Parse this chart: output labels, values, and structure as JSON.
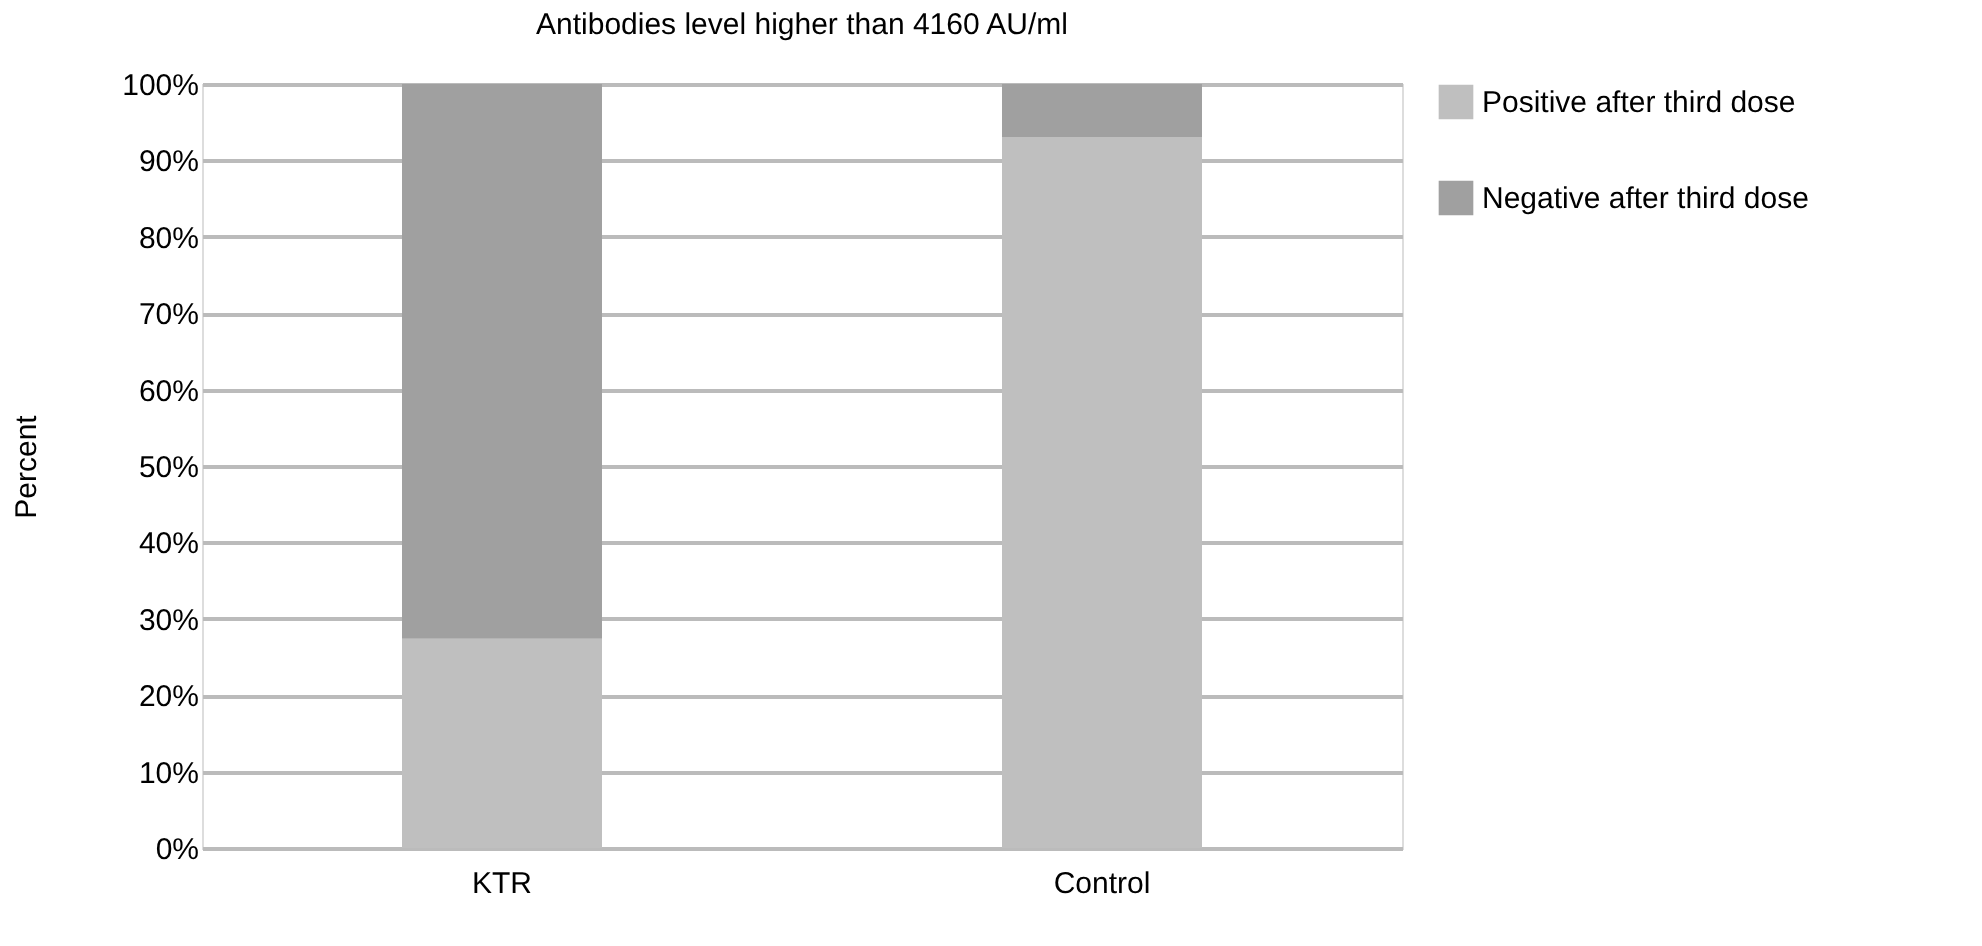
{
  "chart_data": {
    "type": "bar",
    "title": "Antibodies level higher than 4160 AU/ml",
    "ylabel": "Percent",
    "categories": [
      "KTR",
      "Control"
    ],
    "stacked": true,
    "series": [
      {
        "name": "Positive after third dose",
        "color": "#bfbfbf",
        "values": [
          27.4,
          93
        ]
      },
      {
        "name": "Negative after third dose",
        "color": "#a0a0a0",
        "values": [
          72.6,
          7
        ]
      }
    ],
    "ylim": [
      0,
      100
    ],
    "yticks": [
      {
        "value": 0,
        "label": "0%"
      },
      {
        "value": 10,
        "label": "10%"
      },
      {
        "value": 20,
        "label": "20%"
      },
      {
        "value": 30,
        "label": "30%"
      },
      {
        "value": 40,
        "label": "40%"
      },
      {
        "value": 50,
        "label": "50%"
      },
      {
        "value": 60,
        "label": "60%"
      },
      {
        "value": 70,
        "label": "70%"
      },
      {
        "value": 80,
        "label": "80%"
      },
      {
        "value": 90,
        "label": "90%"
      },
      {
        "value": 100,
        "label": "100%"
      }
    ],
    "grid": "y",
    "legend": "right"
  }
}
